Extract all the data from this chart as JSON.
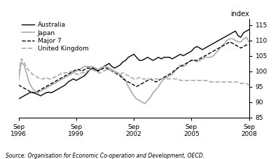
{
  "ylabel_right": "index",
  "source": "Source: Organisation for Economic Co-operation and Development, OECD.",
  "ylim": [
    85,
    117
  ],
  "yticks": [
    85,
    90,
    95,
    100,
    105,
    110,
    115
  ],
  "xtick_labels": [
    "Sep\n1996",
    "Sep\n1999",
    "Sep\n2002",
    "Sep\n2005",
    "Sep\n2008"
  ],
  "colors": {
    "australia": "#000000",
    "japan": "#aaaaaa",
    "major7": "#000000",
    "uk": "#aaaaaa"
  },
  "linestyles": {
    "australia": "-",
    "japan": "-",
    "major7": "--",
    "uk": "--"
  },
  "linewidths": {
    "australia": 1.0,
    "japan": 1.2,
    "major7": 1.0,
    "uk": 1.2
  },
  "australia": [
    91.0,
    91.5,
    92.0,
    92.5,
    93.0,
    93.2,
    92.8,
    92.5,
    92.0,
    92.5,
    93.0,
    93.2,
    93.0,
    93.5,
    94.0,
    94.5,
    95.0,
    95.5,
    96.5,
    97.0,
    97.5,
    97.0,
    97.5,
    98.0,
    98.5,
    99.5,
    100.5,
    101.0,
    100.5,
    100.0,
    101.0,
    101.5,
    102.0,
    102.5,
    101.5,
    101.0,
    101.5,
    102.0,
    103.0,
    103.5,
    104.5,
    105.0,
    105.5,
    104.5,
    103.5,
    103.5,
    104.0,
    104.5,
    104.0,
    103.5,
    104.0,
    104.5,
    104.0,
    104.5,
    104.5,
    104.5,
    104.0,
    104.5,
    105.0,
    105.5,
    105.0,
    105.5,
    106.0,
    106.5,
    107.5,
    108.0,
    107.5,
    107.0,
    107.5,
    108.0,
    108.5,
    109.0,
    109.5,
    110.0,
    110.5,
    111.0,
    111.5,
    112.0,
    112.5,
    113.0,
    111.5,
    111.0,
    112.5,
    113.0,
    113.5
  ],
  "japan": [
    97.0,
    103.0,
    102.0,
    99.0,
    96.0,
    94.5,
    93.5,
    93.0,
    93.5,
    94.0,
    94.5,
    95.0,
    95.5,
    96.0,
    96.5,
    97.0,
    97.5,
    98.0,
    98.5,
    99.0,
    99.5,
    100.0,
    100.5,
    101.0,
    101.5,
    101.5,
    101.5,
    101.5,
    101.0,
    100.5,
    101.0,
    101.5,
    101.5,
    101.0,
    100.5,
    100.0,
    99.5,
    99.0,
    98.0,
    97.0,
    95.0,
    93.5,
    92.0,
    91.0,
    90.5,
    90.0,
    89.5,
    90.5,
    91.5,
    93.0,
    94.0,
    95.0,
    96.5,
    97.5,
    98.0,
    98.5,
    99.0,
    100.0,
    101.0,
    102.0,
    101.5,
    102.0,
    103.0,
    103.5,
    103.5,
    103.0,
    103.5,
    104.0,
    104.5,
    104.5,
    104.5,
    105.0,
    106.0,
    107.0,
    108.0,
    109.0,
    110.0,
    110.5,
    110.5,
    110.0,
    109.5,
    109.5,
    110.5,
    111.0,
    109.5
  ],
  "major7": [
    95.5,
    95.0,
    94.5,
    94.0,
    93.5,
    93.0,
    93.0,
    93.5,
    94.0,
    94.5,
    95.0,
    95.5,
    96.0,
    96.5,
    97.0,
    97.5,
    98.0,
    98.5,
    99.0,
    99.5,
    100.0,
    100.5,
    100.5,
    100.0,
    100.5,
    101.0,
    101.0,
    101.0,
    100.5,
    100.0,
    100.5,
    101.0,
    101.0,
    100.5,
    100.0,
    99.5,
    99.0,
    98.5,
    97.5,
    97.0,
    96.5,
    96.0,
    95.5,
    95.0,
    95.5,
    96.0,
    96.5,
    97.0,
    97.5,
    97.0,
    96.5,
    97.0,
    97.5,
    98.0,
    98.5,
    99.0,
    99.5,
    100.5,
    101.0,
    101.5,
    102.0,
    102.5,
    103.0,
    103.5,
    103.5,
    103.5,
    104.0,
    104.5,
    105.0,
    105.5,
    106.0,
    106.5,
    107.0,
    107.5,
    108.0,
    108.5,
    109.0,
    109.5,
    109.0,
    108.5,
    108.0,
    107.5,
    108.0,
    108.5,
    108.5
  ],
  "uk": [
    99.5,
    104.0,
    103.0,
    101.0,
    100.0,
    99.0,
    98.5,
    98.0,
    97.5,
    97.5,
    98.0,
    97.5,
    97.5,
    98.0,
    98.5,
    99.0,
    99.5,
    99.5,
    99.5,
    100.0,
    99.5,
    99.0,
    99.0,
    99.5,
    99.5,
    100.0,
    100.5,
    100.5,
    100.0,
    99.5,
    99.5,
    100.0,
    100.5,
    100.5,
    100.0,
    99.5,
    99.5,
    99.0,
    99.5,
    99.0,
    98.5,
    98.0,
    97.5,
    97.5,
    98.0,
    97.5,
    97.5,
    97.5,
    97.5,
    97.5,
    97.5,
    97.5,
    97.5,
    97.5,
    97.5,
    97.5,
    97.5,
    97.5,
    97.5,
    97.0,
    97.0,
    97.0,
    97.0,
    97.0,
    97.0,
    97.0,
    97.0,
    97.0,
    97.0,
    97.0,
    96.5,
    96.5,
    96.5,
    96.5,
    96.5,
    96.5,
    96.5,
    96.5,
    96.5,
    96.5,
    96.5,
    96.0,
    96.0,
    96.0,
    95.5
  ]
}
